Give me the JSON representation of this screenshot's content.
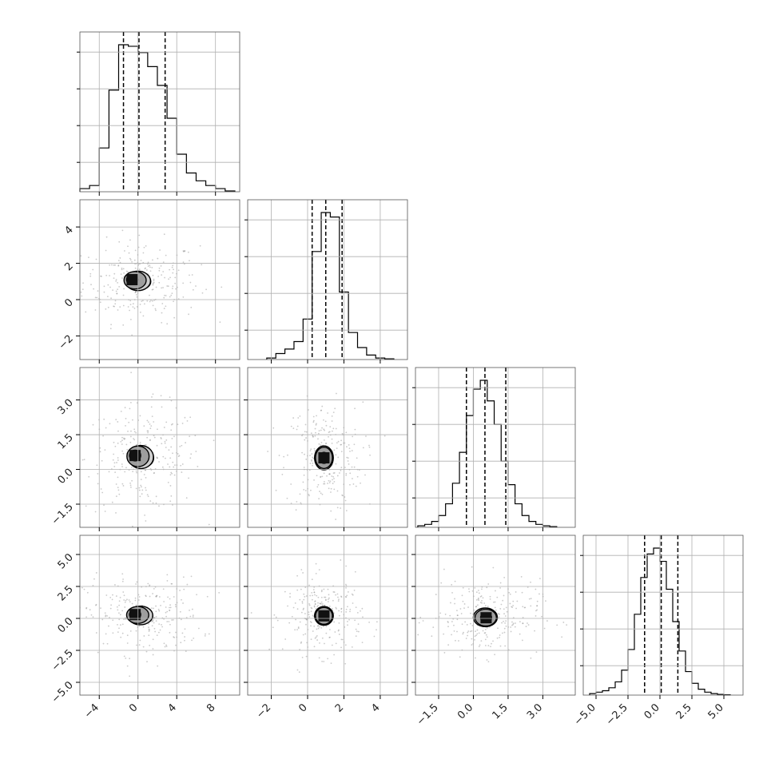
{
  "colors": {
    "ink": "#000000",
    "grid": "#b0b0b0",
    "axis": "#000000",
    "scatter": "#8a8a8a"
  },
  "chart_data": {
    "type": "corner",
    "grid": true,
    "parameters": [
      {
        "range": [
          -6.0,
          10.5
        ],
        "ticks": [
          -4,
          0,
          4,
          8
        ],
        "tick_labels": [
          "−4",
          "0",
          "4",
          "8"
        ],
        "quantiles": [
          -1.5,
          0.1,
          2.8
        ],
        "hist_bins": [
          -5.5,
          -4.5,
          -3.5,
          -2.5,
          -1.5,
          -0.5,
          0.5,
          1.5,
          2.5,
          3.5,
          4.5,
          5.5,
          6.5,
          7.5,
          8.5,
          9.5
        ],
        "hist_density": [
          0.02,
          0.04,
          0.28,
          0.65,
          0.94,
          0.93,
          0.89,
          0.8,
          0.68,
          0.47,
          0.24,
          0.12,
          0.07,
          0.04,
          0.02,
          0.005
        ]
      },
      {
        "range": [
          -3.3,
          5.5
        ],
        "ticks": [
          -2,
          0,
          2,
          4
        ],
        "tick_labels": [
          "−2",
          "0",
          "2",
          "4"
        ],
        "quantiles": [
          0.25,
          1.0,
          1.9
        ],
        "hist_bins": [
          -2.0,
          -1.5,
          -1.0,
          -0.5,
          0.0,
          0.5,
          1.0,
          1.5,
          2.0,
          2.5,
          3.0,
          3.5,
          4.0,
          4.5
        ],
        "hist_density": [
          0.01,
          0.04,
          0.07,
          0.12,
          0.27,
          0.72,
          0.98,
          0.95,
          0.45,
          0.18,
          0.08,
          0.03,
          0.01,
          0.005
        ]
      },
      {
        "range": [
          -2.5,
          4.4
        ],
        "ticks": [
          -1.5,
          0.0,
          1.5,
          3.0
        ],
        "tick_labels": [
          "−1.5",
          "0.0",
          "1.5",
          "3.0"
        ],
        "quantiles": [
          -0.3,
          0.5,
          1.4
        ],
        "hist_bins": [
          -2.25,
          -1.95,
          -1.65,
          -1.35,
          -1.05,
          -0.75,
          -0.45,
          -0.15,
          0.15,
          0.45,
          0.75,
          1.05,
          1.35,
          1.65,
          1.95,
          2.25,
          2.55,
          2.85,
          3.15,
          3.45
        ],
        "hist_density": [
          0.01,
          0.02,
          0.04,
          0.08,
          0.16,
          0.3,
          0.51,
          0.76,
          0.94,
          1.0,
          0.86,
          0.7,
          0.45,
          0.29,
          0.16,
          0.08,
          0.04,
          0.02,
          0.01,
          0.005
        ]
      },
      {
        "range": [
          -6.0,
          6.5
        ],
        "ticks": [
          -5.0,
          -2.5,
          0.0,
          2.5,
          5.0
        ],
        "tick_labels": [
          "−5.0",
          "−2.5",
          "0.0",
          "2.5",
          "5.0"
        ],
        "quantiles": [
          -1.2,
          0.1,
          1.4
        ],
        "hist_bins": [
          -5.25,
          -4.75,
          -4.25,
          -3.75,
          -3.25,
          -2.75,
          -2.25,
          -1.75,
          -1.25,
          -0.75,
          -0.25,
          0.25,
          0.75,
          1.25,
          1.75,
          2.25,
          2.75,
          3.25,
          3.75,
          4.25,
          4.75,
          5.25
        ],
        "hist_density": [
          0.01,
          0.02,
          0.03,
          0.05,
          0.09,
          0.17,
          0.31,
          0.55,
          0.8,
          0.96,
          1.0,
          0.91,
          0.72,
          0.5,
          0.3,
          0.16,
          0.08,
          0.04,
          0.02,
          0.01,
          0.005,
          0.002
        ]
      }
    ],
    "joint": {
      "1_0": {
        "mean": [
          0.3,
          1.0
        ],
        "peak": [
          -0.6,
          1.1
        ],
        "spread": [
          2.4,
          0.9
        ],
        "levels": [
          0.5,
          1.0,
          1.5,
          2.0
        ]
      },
      "2_0": {
        "mean": [
          0.6,
          0.5
        ],
        "peak": [
          -0.3,
          0.6
        ],
        "spread": [
          2.4,
          0.9
        ],
        "levels": [
          0.5,
          1.0,
          1.5,
          2.0
        ]
      },
      "2_1": {
        "mean": [
          0.9,
          0.5
        ],
        "peak": [
          0.9,
          0.5
        ],
        "spread": [
          0.85,
          0.95
        ],
        "levels": [
          0.5,
          1.0,
          1.5,
          2.0
        ]
      },
      "3_0": {
        "mean": [
          0.5,
          0.2
        ],
        "peak": [
          -0.3,
          0.3
        ],
        "spread": [
          2.4,
          1.2
        ],
        "levels": [
          0.5,
          1.0,
          1.5,
          2.0
        ]
      },
      "3_1": {
        "mean": [
          0.9,
          0.2
        ],
        "peak": [
          0.9,
          0.2
        ],
        "spread": [
          0.85,
          1.2
        ],
        "levels": [
          0.5,
          1.0,
          1.5,
          2.0
        ]
      },
      "3_2": {
        "mean": [
          0.5,
          0.1
        ],
        "peak": [
          0.55,
          0.05
        ],
        "spread": [
          0.95,
          1.2
        ],
        "levels": [
          0.5,
          1.0,
          1.5,
          2.0
        ]
      }
    }
  }
}
